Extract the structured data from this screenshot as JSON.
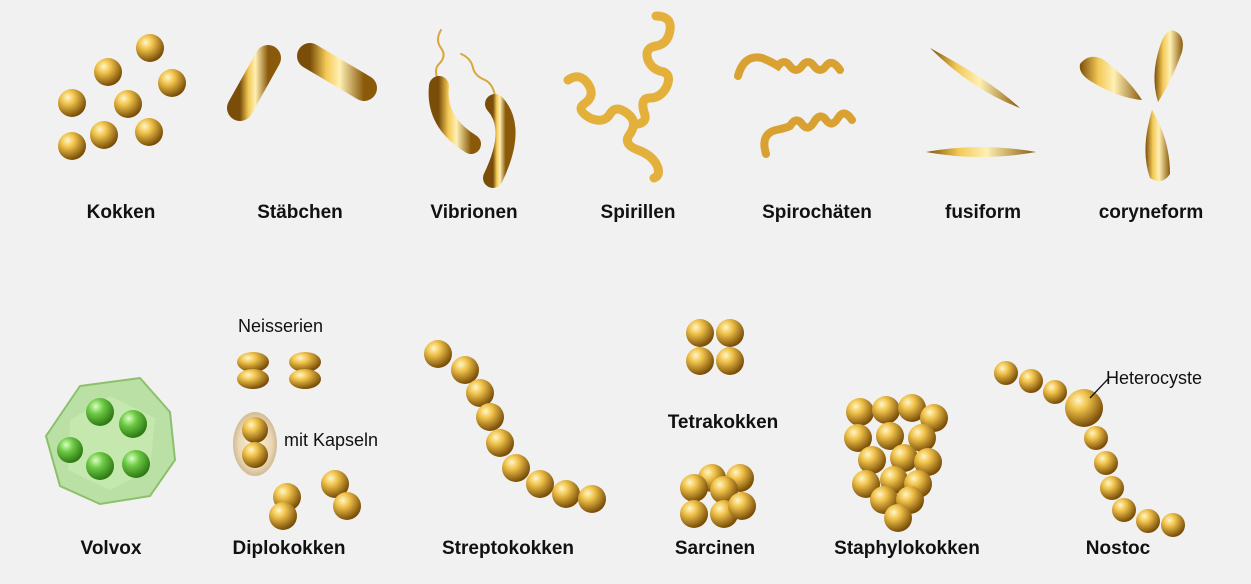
{
  "labels": {
    "kokken": "Kokken",
    "staebchen": "Stäbchen",
    "vibrionen": "Vibrionen",
    "spirillen": "Spirillen",
    "spirochaeten": "Spirochäten",
    "fusiform": "fusiform",
    "coryneform": "coryneform",
    "volvox": "Volvox",
    "diplokokken": "Diplokokken",
    "streptokokken": "Streptokokken",
    "tetrakokken": "Tetrakokken",
    "sarcinen": "Sarcinen",
    "staphylokokken": "Staphylokokken",
    "nostoc": "Nostoc"
  },
  "annotations": {
    "neisserien": "Neisserien",
    "mit_kapseln": "mit Kapseln",
    "heterocyste": "Heterocyste"
  },
  "colors": {
    "background": "#f1f1f1",
    "gold_light": "#fff2b0",
    "gold_mid": "#e8b840",
    "gold_dark": "#8a5a0a",
    "volvox_green": "#7ccf55",
    "volvox_shell": "#b9e29c"
  }
}
